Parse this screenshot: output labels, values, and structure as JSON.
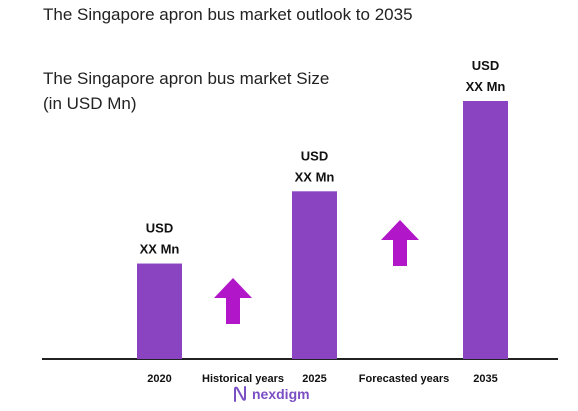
{
  "title": "The Singapore apron bus market outlook to 2035",
  "brand": {
    "name": "nexdigm"
  },
  "colors": {
    "bar": "#8a44c2",
    "arrow": "#b116c9",
    "axis": "#222222",
    "brand": "#7b4fc4"
  },
  "chart_data": {
    "type": "bar",
    "title": "The Singapore apron bus market Size",
    "subtitle": "(in USD Mn)",
    "categories": [
      "2020",
      "2025",
      "2035"
    ],
    "values": [
      37,
      65,
      100
    ],
    "value_note": "relative bar heights; actual values masked as \"USD XX Mn\"",
    "data_labels": [
      {
        "line1": "USD",
        "line2": "XX Mn"
      },
      {
        "line1": "USD",
        "line2": "XX Mn"
      },
      {
        "line1": "USD",
        "line2": "XX Mn"
      }
    ],
    "period_labels": [
      "Historical years",
      "Forecasted years"
    ],
    "growth_arrows": [
      "up",
      "up"
    ],
    "ylim": [
      0,
      100
    ],
    "grid": false,
    "legend": "none"
  }
}
